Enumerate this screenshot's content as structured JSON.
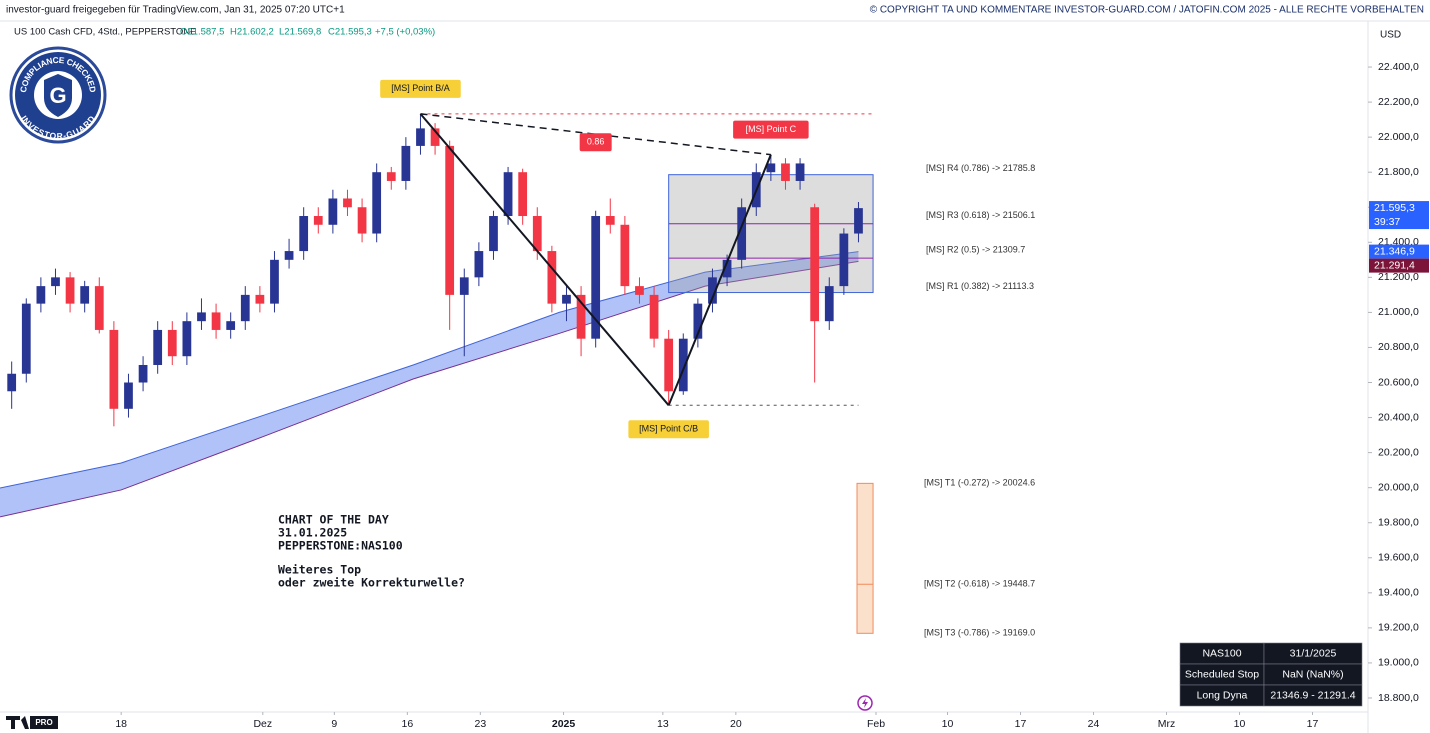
{
  "header": {
    "left": "investor-guard freigegeben für TradingView.com, Jan 31, 2025 07:20 UTC+1",
    "right": "© COPYRIGHT TA UND KOMMENTARE INVESTOR-GUARD.COM / JATOFIN.COM 2025 - ALLE RECHTE VORBEHALTEN"
  },
  "legend": {
    "symbol": "US 100 Cash CFD, 4Std., PEPPERSTONE",
    "open": "O21.587,5",
    "high": "H21.602,2",
    "low": "L21.569,8",
    "close": "C21.595,3",
    "change": "+7,5 (+0,03%)"
  },
  "logo": {
    "top": "COMPLIANCE CHECKED",
    "bottom": "INVESTOR-GUARD",
    "letter": "G"
  },
  "tv_badge": "PRO",
  "note": {
    "lines": [
      "CHART OF THE DAY",
      "31.01.2025",
      "PEPPERSTONE:NAS100"
    ],
    "question": [
      "Weiteres Top",
      "oder zweite Korrekturwelle?"
    ]
  },
  "table": {
    "rows": [
      [
        "NAS100",
        "31/1/2025"
      ],
      [
        "Scheduled Stop",
        "NaN (NaN%)"
      ],
      [
        "Long Dyna",
        "21346.9 - 21291.4"
      ]
    ]
  },
  "chart_data": {
    "type": "candlestick",
    "currency": "USD",
    "up_color": "#283593",
    "down_color": "#f23645",
    "x": [
      -7.5,
      -6.5,
      -5.5,
      -4.5,
      -3.5,
      -2.5,
      -1.5,
      -0.5,
      0.5,
      1.5,
      2.5,
      3.5,
      4.5,
      5.5,
      6.5,
      7.5,
      8.5,
      9.5,
      10.5,
      11.5,
      12.5,
      13.5,
      14.5,
      15.5,
      16.5,
      17.5,
      18.5,
      19.5,
      20.5,
      21.5,
      22.5,
      23.5,
      24.5,
      25.5,
      26.5,
      27.5,
      28.5,
      29.5,
      30.5,
      31.5,
      32.5,
      33.5,
      34.5,
      35.5,
      36.5,
      37.5,
      38.5,
      39.5,
      40.5,
      41.5,
      42.5,
      43.5,
      44.5,
      45.5,
      46.5,
      47.5,
      48.5,
      49.5,
      50.5
    ],
    "open": [
      20550,
      20650,
      21050,
      21150,
      21200,
      21050,
      21150,
      20900,
      20450,
      20600,
      20700,
      20900,
      20750,
      20950,
      21000,
      20900,
      20950,
      21100,
      21050,
      21300,
      21350,
      21550,
      21500,
      21650,
      21600,
      21450,
      21800,
      21750,
      21950,
      22050,
      21950,
      21100,
      21200,
      21350,
      21550,
      21800,
      21550,
      21350,
      21050,
      21100,
      20850,
      21550,
      21500,
      21150,
      21100,
      20850,
      20550,
      20850,
      21050,
      21200,
      21300,
      21600,
      21800,
      21850,
      21750,
      21600,
      20950,
      21150,
      21450
    ],
    "high": [
      20720,
      21080,
      21200,
      21250,
      21230,
      21180,
      21200,
      20950,
      20650,
      20750,
      20950,
      20950,
      21000,
      21080,
      21050,
      21000,
      21150,
      21150,
      21350,
      21420,
      21600,
      21600,
      21700,
      21700,
      21650,
      21850,
      21830,
      22000,
      22133,
      22080,
      21980,
      21250,
      21400,
      21580,
      21830,
      21820,
      21600,
      21380,
      21150,
      21150,
      21580,
      21650,
      21550,
      21200,
      21150,
      20900,
      20880,
      21080,
      21250,
      21330,
      21650,
      21850,
      21900,
      21880,
      21880,
      21620,
      21200,
      21480,
      21630
    ],
    "low": [
      20450,
      20600,
      21000,
      21100,
      21000,
      21000,
      20880,
      20350,
      20400,
      20550,
      20650,
      20700,
      20700,
      20900,
      20850,
      20850,
      20900,
      21000,
      21000,
      21250,
      21300,
      21450,
      21450,
      21550,
      21400,
      21400,
      21700,
      21700,
      21900,
      21900,
      20900,
      20750,
      21150,
      21300,
      21500,
      21500,
      21300,
      21000,
      20950,
      20750,
      20800,
      21450,
      21100,
      21050,
      20800,
      20470,
      20530,
      20800,
      21000,
      21150,
      21250,
      21550,
      21750,
      21700,
      21700,
      20600,
      20900,
      21100,
      21400
    ],
    "close": [
      20650,
      21050,
      21150,
      21200,
      21050,
      21150,
      20900,
      20450,
      20600,
      20700,
      20900,
      20750,
      20950,
      21000,
      20900,
      20950,
      21100,
      21050,
      21300,
      21350,
      21550,
      21500,
      21650,
      21600,
      21450,
      21800,
      21750,
      21950,
      22050,
      21950,
      21100,
      21200,
      21350,
      21550,
      21800,
      21550,
      21350,
      21050,
      21100,
      20850,
      21550,
      21500,
      21150,
      21100,
      20850,
      20550,
      20850,
      21050,
      21200,
      21300,
      21600,
      21800,
      21850,
      21750,
      21850,
      20950,
      21150,
      21450,
      21595
    ],
    "band": {
      "color": "#6f8ff0",
      "x": [
        -8.3,
        0,
        10,
        20,
        30,
        40,
        50.5
      ],
      "upper": [
        19998,
        20141,
        20420,
        20700,
        21000,
        21230,
        21347
      ],
      "lower": [
        19833,
        19987,
        20300,
        20620,
        20880,
        21150,
        21291
      ]
    },
    "xlim": [
      -8.3,
      85.4
    ],
    "xticks": [
      {
        "value": 0,
        "label": "18"
      },
      {
        "value": 9.7,
        "label": "Dez"
      },
      {
        "value": 14.6,
        "label": "9"
      },
      {
        "value": 19.6,
        "label": "16"
      },
      {
        "value": 24.6,
        "label": "23"
      },
      {
        "value": 30.3,
        "label": "2025"
      },
      {
        "value": 37.1,
        "label": "13"
      },
      {
        "value": 42.1,
        "label": "20"
      },
      {
        "value": 51.7,
        "label": "Feb"
      },
      {
        "value": 56.6,
        "label": "10"
      },
      {
        "value": 61.6,
        "label": "17"
      },
      {
        "value": 66.6,
        "label": "24"
      },
      {
        "value": 71.6,
        "label": "Mrz"
      },
      {
        "value": 76.6,
        "label": "10"
      },
      {
        "value": 81.6,
        "label": "17"
      }
    ],
    "ylim": [
      18720,
      22657
    ],
    "yticks": [
      {
        "value": 18800,
        "label": "18.800,0"
      },
      {
        "value": 19000,
        "label": "19.000,0"
      },
      {
        "value": 19200,
        "label": "19.200,0"
      },
      {
        "value": 19400,
        "label": "19.400,0"
      },
      {
        "value": 19600,
        "label": "19.600,0"
      },
      {
        "value": 19800,
        "label": "19.800,0"
      },
      {
        "value": 20000,
        "label": "20.000,0"
      },
      {
        "value": 20200,
        "label": "20.200,0"
      },
      {
        "value": 20400,
        "label": "20.400,0"
      },
      {
        "value": 20600,
        "label": "20.600,0"
      },
      {
        "value": 20800,
        "label": "20.800,0"
      },
      {
        "value": 21000,
        "label": "21.000,0"
      },
      {
        "value": 21200,
        "label": "21.200,0"
      },
      {
        "value": 21400,
        "label": "21.400,0"
      },
      {
        "value": 21600,
        "label": "21.600,0"
      },
      {
        "value": 21800,
        "label": "21.800,0"
      },
      {
        "value": 22000,
        "label": "22.000,0"
      },
      {
        "value": 22200,
        "label": "22.200,0"
      },
      {
        "value": 22400,
        "label": "22.400,0"
      }
    ],
    "price_labels": [
      {
        "value": 21595.3,
        "label": "21.595,3",
        "timer": "39:37",
        "color": "#2962ff"
      },
      {
        "value": 21346.9,
        "label": "21.346,9",
        "color": "#2962ff"
      },
      {
        "value": 21291.4,
        "label": "21.291,4",
        "color": "#7b1438"
      }
    ],
    "points": [
      {
        "label": "[MS] Point B/A",
        "x": 20.5,
        "value": 22133,
        "color": "#f7d038"
      },
      {
        "label": "[MS] Point C/B",
        "x": 37.5,
        "value": 20470,
        "color": "#f7d038"
      },
      {
        "label": "[MS] Point  C",
        "x": 44.5,
        "value": 21900,
        "color": "#f23645"
      }
    ],
    "ratio_label": "0.86",
    "levels": [
      {
        "label": "[MS] R4 (0.786) -> 21785.8",
        "value": 21785.8
      },
      {
        "label": "[MS] R3 (0.618) -> 21506.1",
        "value": 21506.1
      },
      {
        "label": "[MS] R2 (0.5) -> 21309.7",
        "value": 21309.7
      },
      {
        "label": "[MS] R1 (0.382) -> 21113.3",
        "value": 21113.3
      }
    ],
    "targets": [
      {
        "label": "[MS] T1 (-0.272) -> 20024.6",
        "value": 20024.6
      },
      {
        "label": "[MS] T2 (-0.618) -> 19448.7",
        "value": 19448.7
      },
      {
        "label": "[MS] T3 (-0.786) -> 19169.0",
        "value": 19169.0
      }
    ]
  }
}
